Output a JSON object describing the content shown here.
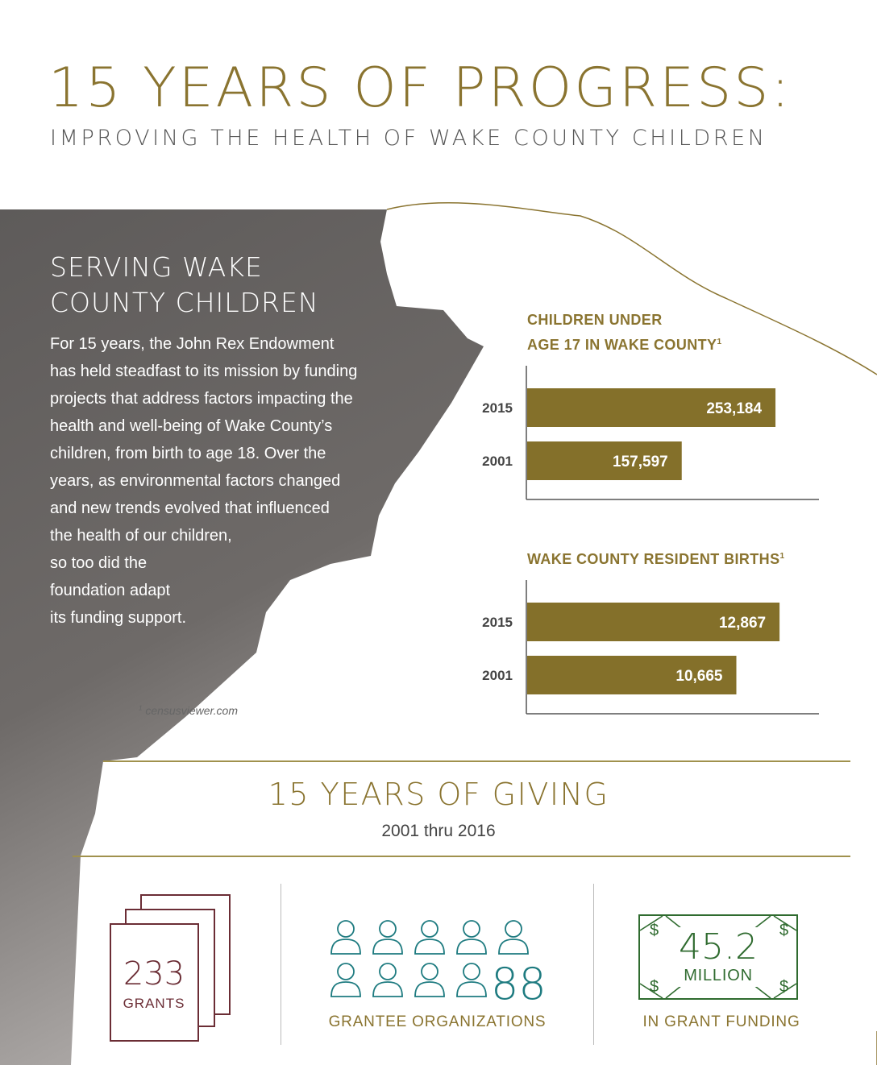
{
  "header": {
    "title": "15 YEARS OF PROGRESS:",
    "subtitle": "IMPROVING THE HEALTH OF WAKE COUNTY CHILDREN"
  },
  "hero": {
    "heading_line1": "SERVING WAKE",
    "heading_line2": "COUNTY CHILDREN",
    "paragraph_lines": [
      "For 15 years, the John Rex Endowment",
      "has held steadfast to its mission by funding",
      "projects that address factors impacting the",
      "health and well-being of Wake County’s",
      "children, from birth to age 18. Over the",
      "years, as environmental factors changed",
      "and new trends evolved that influenced",
      "the health of our children,",
      "so too did the",
      "foundation adapt",
      "its funding support."
    ],
    "footnote_marker": "1",
    "footnote_text": "censusviewer.com"
  },
  "colors": {
    "gold": "#8a7430",
    "bar": "#84702a",
    "maroon": "#6b2d35",
    "teal": "#1e7b80",
    "green": "#2f6b2f"
  },
  "chart_data": [
    {
      "type": "bar",
      "orientation": "horizontal",
      "title_line1": "CHILDREN UNDER",
      "title_line2": "AGE 17 IN WAKE COUNTY",
      "title_sup": "1",
      "categories": [
        "2015",
        "2001"
      ],
      "values": [
        253184,
        157597
      ],
      "value_labels": [
        "253,184",
        "157,597"
      ],
      "xlim": [
        0,
        300000
      ],
      "grid": false
    },
    {
      "type": "bar",
      "orientation": "horizontal",
      "title_line1": "WAKE COUNTY RESIDENT BIRTHS",
      "title_sup": "1",
      "categories": [
        "2015",
        "2001"
      ],
      "values": [
        12867,
        10665
      ],
      "value_labels": [
        "12,867",
        "10,665"
      ],
      "xlim": [
        0,
        15000
      ],
      "grid": false
    }
  ],
  "giving": {
    "title": "15 YEARS OF GIVING",
    "range": "2001 thru 2016",
    "grants": {
      "number": "233",
      "label": "GRANTS",
      "icon": "stacked-cards-icon"
    },
    "organizations": {
      "number": "88",
      "label": "GRANTEE ORGANIZATIONS",
      "icon": "person-icon"
    },
    "funding": {
      "number": "45.2",
      "unit": "MILLION",
      "label": "IN GRANT FUNDING",
      "icon": "dollar-bill-icon",
      "corner_symbol": "$"
    }
  }
}
